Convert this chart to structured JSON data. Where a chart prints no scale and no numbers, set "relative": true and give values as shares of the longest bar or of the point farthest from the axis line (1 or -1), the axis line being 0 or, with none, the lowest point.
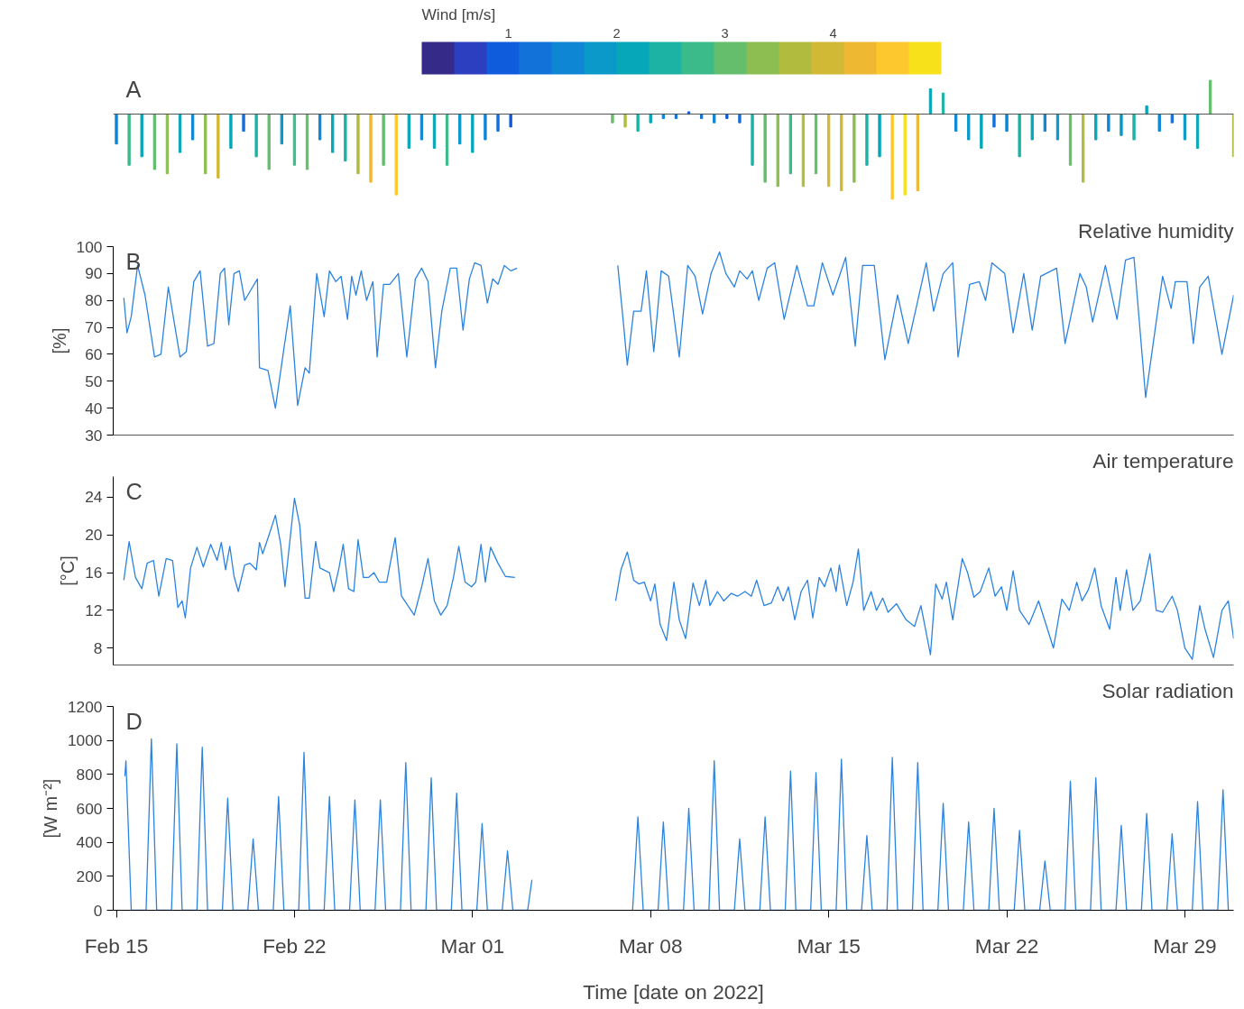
{
  "chart_data": [
    {
      "type": "bar",
      "relative": true,
      "annotations": [
        "A"
      ],
      "clabel": "Wind [m/s]",
      "clim": [
        0.2,
        5.0
      ],
      "cticks": [
        1,
        2,
        3,
        4
      ],
      "xlim": [
        "2022-02-14T21:00",
        "2022-03-30T22:00"
      ],
      "tick_labels": false,
      "x": [
        "2022-02-15T00:00",
        "2022-02-15T12:00",
        "2022-02-16T00:00",
        "2022-02-16T12:00",
        "2022-02-17T00:00",
        "2022-02-17T12:00",
        "2022-02-18T00:00",
        "2022-02-18T12:00",
        "2022-02-19T00:00",
        "2022-02-19T12:00",
        "2022-02-20T00:00",
        "2022-02-20T12:00",
        "2022-02-21T00:00",
        "2022-02-21T12:00",
        "2022-02-22T00:00",
        "2022-02-22T12:00",
        "2022-02-23T00:00",
        "2022-02-23T12:00",
        "2022-02-24T00:00",
        "2022-02-24T12:00",
        "2022-02-25T00:00",
        "2022-02-25T12:00",
        "2022-02-26T00:00",
        "2022-02-26T12:00",
        "2022-02-27T00:00",
        "2022-02-27T12:00",
        "2022-02-28T00:00",
        "2022-02-28T12:00",
        "2022-03-01T00:00",
        "2022-03-01T12:00",
        "2022-03-02T00:00",
        "2022-03-02T12:00",
        "2022-03-06T12:00",
        "2022-03-07T00:00",
        "2022-03-07T12:00",
        "2022-03-08T00:00",
        "2022-03-08T12:00",
        "2022-03-09T00:00",
        "2022-03-09T12:00",
        "2022-03-10T00:00",
        "2022-03-10T12:00",
        "2022-03-11T00:00",
        "2022-03-11T12:00",
        "2022-03-12T00:00",
        "2022-03-12T12:00",
        "2022-03-13T00:00",
        "2022-03-13T12:00",
        "2022-03-14T00:00",
        "2022-03-14T12:00",
        "2022-03-15T00:00",
        "2022-03-15T12:00",
        "2022-03-16T00:00",
        "2022-03-16T12:00",
        "2022-03-17T00:00",
        "2022-03-17T12:00",
        "2022-03-18T00:00",
        "2022-03-18T12:00",
        "2022-03-19T00:00",
        "2022-03-19T12:00",
        "2022-03-20T00:00",
        "2022-03-20T12:00",
        "2022-03-21T00:00",
        "2022-03-21T12:00",
        "2022-03-22T00:00",
        "2022-03-22T12:00",
        "2022-03-23T00:00",
        "2022-03-23T12:00",
        "2022-03-24T00:00",
        "2022-03-24T12:00",
        "2022-03-25T00:00",
        "2022-03-25T12:00",
        "2022-03-26T00:00",
        "2022-03-26T12:00",
        "2022-03-27T00:00",
        "2022-03-27T12:00",
        "2022-03-28T00:00",
        "2022-03-28T12:00",
        "2022-03-29T00:00",
        "2022-03-29T12:00",
        "2022-03-30T00:00",
        "2022-03-30T22:00"
      ],
      "values": [
        -0.35,
        -0.6,
        -0.5,
        -0.65,
        -0.7,
        -0.45,
        -0.3,
        -0.7,
        -0.75,
        -0.4,
        -0.2,
        -0.5,
        -0.65,
        -0.35,
        -0.6,
        -0.65,
        -0.3,
        -0.45,
        -0.55,
        -0.7,
        -0.8,
        -0.6,
        -0.95,
        -0.4,
        -0.3,
        -0.4,
        -0.6,
        -0.35,
        -0.45,
        -0.3,
        -0.2,
        -0.15,
        -0.1,
        -0.15,
        -0.2,
        -0.1,
        -0.05,
        -0.05,
        0.03,
        -0.05,
        -0.1,
        -0.05,
        -0.1,
        -0.6,
        -0.8,
        -0.85,
        -0.7,
        -0.85,
        -0.7,
        -0.85,
        -0.9,
        -0.8,
        -0.6,
        -0.5,
        -1.0,
        -0.95,
        -0.9,
        0.3,
        0.25,
        -0.2,
        -0.3,
        -0.4,
        -0.15,
        -0.2,
        -0.5,
        -0.3,
        -0.2,
        -0.3,
        -0.6,
        -0.8,
        -0.3,
        -0.2,
        -0.25,
        -0.3,
        0.1,
        -0.2,
        -0.1,
        -0.3,
        -0.4,
        0.4,
        -0.5
      ],
      "cvalues": [
        1.5,
        2.8,
        2.2,
        3.0,
        3.4,
        2.0,
        1.5,
        3.2,
        3.8,
        2.0,
        1.2,
        2.5,
        3.0,
        1.8,
        2.8,
        3.0,
        1.5,
        2.2,
        2.5,
        3.5,
        4.2,
        3.0,
        4.6,
        2.0,
        1.5,
        2.0,
        2.8,
        1.8,
        2.2,
        1.5,
        1.2,
        1.0,
        3.0,
        3.5,
        2.5,
        2.0,
        1.5,
        1.2,
        1.0,
        1.2,
        1.5,
        1.0,
        1.2,
        2.5,
        3.0,
        3.2,
        2.8,
        3.5,
        3.0,
        4.0,
        3.8,
        3.2,
        2.5,
        2.0,
        4.5,
        4.9,
        4.2,
        2.0,
        2.5,
        1.5,
        1.8,
        2.0,
        1.2,
        1.5,
        2.5,
        2.0,
        1.5,
        1.8,
        3.0,
        3.5,
        2.0,
        1.5,
        1.8,
        2.5,
        2.0,
        1.5,
        1.2,
        1.8,
        2.0,
        3.0,
        3.5
      ]
    },
    {
      "type": "line",
      "title": "Relative humidity",
      "ylabel": "[%]",
      "annotations": [
        "B"
      ],
      "ylim": [
        30,
        100
      ],
      "yticks": [
        30,
        40,
        50,
        60,
        70,
        80,
        90,
        100
      ],
      "xlim": [
        "2022-02-14T21:00",
        "2022-03-30T22:00"
      ],
      "tick_labels": "y",
      "grid": false,
      "series": [
        {
          "color": "#2b83e0",
          "x": [
            "2022-02-15T07:00",
            "2022-02-15T10:00",
            "2022-02-15T14:00",
            "2022-02-15T20:00",
            "2022-02-16T03:00",
            "2022-02-16T12:00",
            "2022-02-16T18:00",
            "2022-02-17T01:00",
            "2022-02-17T12:00",
            "2022-02-17T18:00",
            "2022-02-18T01:00",
            "2022-02-18T07:00",
            "2022-02-18T14:00",
            "2022-02-18T20:00",
            "2022-02-19T02:00",
            "2022-02-19T06:00",
            "2022-02-19T10:00",
            "2022-02-19T15:00",
            "2022-02-19T20:00",
            "2022-02-20T01:00",
            "2022-02-20T07:00",
            "2022-02-20T13:00",
            "2022-02-20T15:00",
            "2022-02-20T23:00",
            "2022-02-21T06:00",
            "2022-02-21T14:00",
            "2022-02-21T20:00",
            "2022-02-22T03:00",
            "2022-02-22T10:00",
            "2022-02-22T14:00",
            "2022-02-22T21:00",
            "2022-02-23T04:00",
            "2022-02-23T09:00",
            "2022-02-23T15:00",
            "2022-02-23T20:00",
            "2022-02-24T02:00",
            "2022-02-24T06:00",
            "2022-02-24T10:00",
            "2022-02-24T15:00",
            "2022-02-24T20:00",
            "2022-02-25T02:00",
            "2022-02-25T06:00",
            "2022-02-25T12:00",
            "2022-02-25T18:00",
            "2022-02-26T02:00",
            "2022-02-26T10:00",
            "2022-02-26T18:00",
            "2022-02-27T00:00",
            "2022-02-27T06:00",
            "2022-02-27T13:00",
            "2022-02-27T19:00",
            "2022-02-28T03:00",
            "2022-02-28T09:00",
            "2022-02-28T15:00",
            "2022-02-28T21:00",
            "2022-03-01T02:00",
            "2022-03-01T08:00",
            "2022-03-01T14:00",
            "2022-03-01T19:00",
            "2022-03-02T00:00",
            "2022-03-02T06:00",
            "2022-03-02T12:00",
            "2022-03-02T18:00",
            "2022-03-05T00:00",
            "2022-03-06T17:00",
            "2022-03-06T22:00",
            "2022-03-07T02:00",
            "2022-03-07T08:00",
            "2022-03-07T15:00",
            "2022-03-07T20:00",
            "2022-03-08T03:00",
            "2022-03-08T10:00",
            "2022-03-08T17:00",
            "2022-03-09T03:00",
            "2022-03-09T11:00",
            "2022-03-09T18:00",
            "2022-03-10T01:00",
            "2022-03-10T09:00",
            "2022-03-10T17:00",
            "2022-03-10T23:00",
            "2022-03-11T07:00",
            "2022-03-11T12:00",
            "2022-03-11T19:00",
            "2022-03-12T00:00",
            "2022-03-12T06:00",
            "2022-03-12T14:00",
            "2022-03-12T21:00",
            "2022-03-13T06:00",
            "2022-03-13T18:00",
            "2022-03-14T04:00",
            "2022-03-14T10:00",
            "2022-03-14T18:00",
            "2022-03-15T04:00",
            "2022-03-15T16:00",
            "2022-03-16T01:00",
            "2022-03-16T08:00",
            "2022-03-16T19:00",
            "2022-03-17T05:00",
            "2022-03-17T17:00",
            "2022-03-18T03:00",
            "2022-03-18T20:00",
            "2022-03-19T03:00",
            "2022-03-19T12:00",
            "2022-03-19T21:00",
            "2022-03-20T02:00",
            "2022-03-20T13:00",
            "2022-03-20T22:00",
            "2022-03-21T04:00",
            "2022-03-21T10:00",
            "2022-03-21T22:00",
            "2022-03-22T06:00",
            "2022-03-22T16:00",
            "2022-03-23T00:00",
            "2022-03-23T08:00",
            "2022-03-23T23:00",
            "2022-03-24T07:00",
            "2022-03-24T21:00",
            "2022-03-25T03:00",
            "2022-03-25T09:00",
            "2022-03-25T21:00",
            "2022-03-26T08:00",
            "2022-03-26T16:00",
            "2022-03-27T00:00",
            "2022-03-27T11:00",
            "2022-03-28T03:00",
            "2022-03-28T11:00",
            "2022-03-28T15:00",
            "2022-03-29T02:00",
            "2022-03-29T08:00",
            "2022-03-29T14:00",
            "2022-03-29T22:00",
            "2022-03-30T11:00",
            "2022-03-30T22:00"
          ],
          "values": [
            81,
            68,
            74,
            93,
            82,
            59,
            60,
            85,
            59,
            61,
            87,
            91,
            63,
            64,
            90,
            92,
            71,
            90,
            91,
            80,
            84,
            88,
            55,
            54,
            40,
            62,
            78,
            41,
            55,
            53,
            90,
            74,
            91,
            87,
            89,
            73,
            89,
            82,
            91,
            80,
            87,
            59,
            86,
            86,
            90,
            59,
            88,
            92,
            87,
            55,
            76,
            92,
            92,
            69,
            88,
            94,
            93,
            79,
            88,
            86,
            93,
            91,
            92,
            null,
            93,
            73,
            56,
            76,
            76,
            91,
            61,
            91,
            89,
            59,
            93,
            89,
            75,
            90,
            98,
            90,
            85,
            91,
            88,
            91,
            80,
            92,
            94,
            73,
            93,
            78,
            78,
            94,
            82,
            96,
            63,
            93,
            93,
            58,
            82,
            64,
            94,
            76,
            90,
            94,
            59,
            86,
            87,
            80,
            94,
            90,
            68,
            90,
            69,
            89,
            92,
            64,
            90,
            85,
            72,
            93,
            73,
            95,
            96,
            44,
            89,
            77,
            87,
            87,
            64,
            85,
            89,
            60,
            82
          ]
        }
      ]
    },
    {
      "type": "line",
      "title": "Air temperature",
      "ylabel": "[°C]",
      "annotations": [
        "C"
      ],
      "ylim": [
        6.2,
        26.2
      ],
      "yticks": [
        8,
        12,
        16,
        20,
        24
      ],
      "xlim": [
        "2022-02-14T21:00",
        "2022-03-30T22:00"
      ],
      "tick_labels": "y",
      "grid": false,
      "series": [
        {
          "color": "#2b83e0",
          "x": [
            "2022-02-15T07:00",
            "2022-02-15T12:00",
            "2022-02-15T18:00",
            "2022-02-16T00:00",
            "2022-02-16T05:00",
            "2022-02-16T11:00",
            "2022-02-16T16:00",
            "2022-02-16T23:00",
            "2022-02-17T05:00",
            "2022-02-17T10:00",
            "2022-02-17T14:00",
            "2022-02-17T17:00",
            "2022-02-17T22:00",
            "2022-02-18T04:00",
            "2022-02-18T10:00",
            "2022-02-18T17:00",
            "2022-02-18T23:00",
            "2022-02-19T03:00",
            "2022-02-19T07:00",
            "2022-02-19T11:00",
            "2022-02-19T15:00",
            "2022-02-19T19:00",
            "2022-02-20T01:00",
            "2022-02-20T06:00",
            "2022-02-20T12:00",
            "2022-02-20T15:00",
            "2022-02-20T18:00",
            "2022-02-21T00:00",
            "2022-02-21T06:00",
            "2022-02-21T11:00",
            "2022-02-21T15:00",
            "2022-02-22T00:00",
            "2022-02-22T05:00",
            "2022-02-22T10:00",
            "2022-02-22T14:00",
            "2022-02-22T20:00",
            "2022-02-23T00:00",
            "2022-02-23T09:00",
            "2022-02-23T13:00",
            "2022-02-23T18:00",
            "2022-02-23T22:00",
            "2022-02-24T03:00",
            "2022-02-24T08:00",
            "2022-02-24T12:00",
            "2022-02-24T17:00",
            "2022-02-24T22:00",
            "2022-02-25T03:00",
            "2022-02-25T08:00",
            "2022-02-25T15:00",
            "2022-02-25T23:00",
            "2022-02-26T05:00",
            "2022-02-26T11:00",
            "2022-02-26T17:00",
            "2022-02-27T00:00",
            "2022-02-27T06:00",
            "2022-02-27T12:00",
            "2022-02-27T18:00",
            "2022-02-28T00:00",
            "2022-02-28T06:00",
            "2022-02-28T11:00",
            "2022-02-28T17:00",
            "2022-02-28T23:00",
            "2022-03-01T03:00",
            "2022-03-01T08:00",
            "2022-03-01T12:00",
            "2022-03-01T17:00",
            "2022-03-02T00:00",
            "2022-03-02T07:00",
            "2022-03-02T16:00",
            "2022-03-05T00:00",
            "2022-03-06T15:00",
            "2022-03-06T20:00",
            "2022-03-07T02:00",
            "2022-03-07T08:00",
            "2022-03-07T13:00",
            "2022-03-07T18:00",
            "2022-03-08T00:00",
            "2022-03-08T04:00",
            "2022-03-08T09:00",
            "2022-03-08T15:00",
            "2022-03-08T22:00",
            "2022-03-09T03:00",
            "2022-03-09T09:00",
            "2022-03-09T16:00",
            "2022-03-09T22:00",
            "2022-03-10T04:00",
            "2022-03-10T08:00",
            "2022-03-10T15:00",
            "2022-03-10T21:00",
            "2022-03-11T04:00",
            "2022-03-11T10:00",
            "2022-03-11T17:00",
            "2022-03-11T23:00",
            "2022-03-12T04:00",
            "2022-03-12T11:00",
            "2022-03-12T18:00",
            "2022-03-13T00:00",
            "2022-03-13T05:00",
            "2022-03-13T10:00",
            "2022-03-13T16:00",
            "2022-03-13T22:00",
            "2022-03-14T04:00",
            "2022-03-14T09:00",
            "2022-03-14T15:00",
            "2022-03-14T20:00",
            "2022-03-15T02:00",
            "2022-03-15T07:00",
            "2022-03-15T10:00",
            "2022-03-15T17:00",
            "2022-03-15T23:00",
            "2022-03-16T04:00",
            "2022-03-16T09:00",
            "2022-03-16T16:00",
            "2022-03-16T21:00",
            "2022-03-17T03:00",
            "2022-03-17T08:00",
            "2022-03-17T16:00",
            "2022-03-18T01:00",
            "2022-03-18T09:00",
            "2022-03-18T15:00",
            "2022-03-19T00:00",
            "2022-03-19T05:00",
            "2022-03-19T11:00",
            "2022-03-19T15:00",
            "2022-03-19T21:00",
            "2022-03-20T06:00",
            "2022-03-20T11:00",
            "2022-03-20T17:00",
            "2022-03-20T23:00",
            "2022-03-21T07:00",
            "2022-03-21T13:00",
            "2022-03-21T19:00",
            "2022-03-22T00:00",
            "2022-03-22T06:00",
            "2022-03-22T12:00",
            "2022-03-22T21:00",
            "2022-03-23T06:00",
            "2022-03-23T13:00",
            "2022-03-23T20:00",
            "2022-03-24T04:00",
            "2022-03-24T11:00",
            "2022-03-24T18:00",
            "2022-03-24T23:00",
            "2022-03-25T05:00",
            "2022-03-25T11:00",
            "2022-03-25T17:00",
            "2022-03-26T01:00",
            "2022-03-26T07:00",
            "2022-03-26T11:00",
            "2022-03-26T17:00",
            "2022-03-26T23:00",
            "2022-03-27T06:00",
            "2022-03-27T15:00",
            "2022-03-27T21:00",
            "2022-03-28T03:00",
            "2022-03-28T12:00",
            "2022-03-28T17:00",
            "2022-03-29T00:00",
            "2022-03-29T07:00",
            "2022-03-29T14:00",
            "2022-03-29T19:00",
            "2022-03-30T03:00",
            "2022-03-30T11:00",
            "2022-03-30T17:00",
            "2022-03-30T22:00"
          ],
          "values": [
            15.2,
            19.3,
            15.5,
            14.3,
            17,
            17.3,
            13.5,
            17.5,
            17.3,
            12.3,
            13,
            11.2,
            16.5,
            18.7,
            16.6,
            19,
            17.3,
            19.2,
            16.3,
            18.8,
            15.6,
            14,
            16.8,
            17,
            16.3,
            19.2,
            18,
            20,
            22.1,
            19,
            14.5,
            23.9,
            21,
            13.3,
            13.3,
            19.3,
            16.5,
            16,
            14,
            16.5,
            19,
            14.3,
            14,
            19.5,
            15.5,
            15.5,
            16,
            15,
            15,
            19.7,
            13.5,
            12.5,
            11.5,
            14.5,
            17.5,
            13,
            11.5,
            12.5,
            15.5,
            18.8,
            15,
            14.5,
            15,
            19,
            15,
            18.7,
            17,
            15.6,
            15.5,
            null,
            13,
            16.3,
            18.2,
            15.2,
            14.8,
            15,
            13,
            14.8,
            10.5,
            8.8,
            15,
            11,
            9,
            14.9,
            12.5,
            15.2,
            12.5,
            14,
            13,
            13.8,
            13.5,
            14,
            13.5,
            15.2,
            12.5,
            12.8,
            14.5,
            13,
            14.5,
            11,
            14,
            15.2,
            11.2,
            15.5,
            14.5,
            16.5,
            14,
            16.8,
            12.5,
            15,
            18.5,
            12,
            14,
            12,
            13.3,
            11.8,
            12.7,
            11,
            10.3,
            12.5,
            7.3,
            14.8,
            13.2,
            15,
            11,
            17.5,
            16,
            13.4,
            14,
            16.5,
            13.5,
            14.5,
            12,
            16.2,
            12,
            10.5,
            13,
            10.5,
            8,
            13.2,
            12,
            15,
            13,
            14.2,
            16.5,
            12.5,
            10,
            15.5,
            12,
            16.3,
            12,
            13,
            18,
            12,
            11.8,
            13.5,
            12,
            8,
            6.8,
            12.5,
            10,
            7,
            12,
            13,
            9
          ]
        }
      ]
    },
    {
      "type": "line",
      "title": "Solar radiation",
      "ylabel": "[W m⁻²]",
      "xlabel": "Time [date on 2022]",
      "annotations": [
        "D"
      ],
      "ylim": [
        0,
        1200
      ],
      "yticks": [
        0,
        200,
        400,
        600,
        800,
        1000,
        1200
      ],
      "xlim": [
        "2022-02-14T21:00",
        "2022-03-30T22:00"
      ],
      "xticks": [
        {
          "value": "2022-02-15",
          "label": "Feb 15"
        },
        {
          "value": "2022-02-22",
          "label": "Feb 22"
        },
        {
          "value": "2022-03-01",
          "label": "Mar 01"
        },
        {
          "value": "2022-03-08",
          "label": "Mar 08"
        },
        {
          "value": "2022-03-15",
          "label": "Mar 15"
        },
        {
          "value": "2022-03-22",
          "label": "Mar 22"
        },
        {
          "value": "2022-03-29",
          "label": "Mar 29"
        }
      ],
      "grid": false,
      "series": [
        {
          "color": "#2b83e0",
          "x": [
            "2022-02-15T08:00",
            "2022-02-15T09:00",
            "2022-02-15T14:00",
            "2022-02-16T04:00",
            "2022-02-16T09:00",
            "2022-02-16T14:00",
            "2022-02-17T04:00",
            "2022-02-17T09:00",
            "2022-02-17T14:00",
            "2022-02-18T04:00",
            "2022-02-18T09:00",
            "2022-02-18T14:00",
            "2022-02-19T04:00",
            "2022-02-19T09:00",
            "2022-02-19T14:00",
            "2022-02-20T04:00",
            "2022-02-20T09:00",
            "2022-02-20T14:00",
            "2022-02-21T04:00",
            "2022-02-21T09:00",
            "2022-02-21T14:00",
            "2022-02-22T04:00",
            "2022-02-22T09:00",
            "2022-02-22T14:00",
            "2022-02-23T04:00",
            "2022-02-23T09:00",
            "2022-02-23T14:00",
            "2022-02-24T04:00",
            "2022-02-24T09:00",
            "2022-02-24T14:00",
            "2022-02-25T04:00",
            "2022-02-25T09:00",
            "2022-02-25T14:00",
            "2022-02-26T04:00",
            "2022-02-26T09:00",
            "2022-02-26T14:00",
            "2022-02-27T04:00",
            "2022-02-27T09:00",
            "2022-02-27T14:00",
            "2022-02-28T04:00",
            "2022-02-28T09:00",
            "2022-02-28T14:00",
            "2022-03-01T04:00",
            "2022-03-01T09:00",
            "2022-03-01T14:00",
            "2022-03-02T04:00",
            "2022-03-02T09:00",
            "2022-03-02T14:00",
            "2022-03-03T04:00",
            "2022-03-03T08:00",
            "2022-03-05T00:00",
            "2022-03-07T07:00",
            "2022-03-07T12:00",
            "2022-03-07T17:00",
            "2022-03-08T07:00",
            "2022-03-08T12:00",
            "2022-03-08T17:00",
            "2022-03-09T07:00",
            "2022-03-09T12:00",
            "2022-03-09T17:00",
            "2022-03-10T07:00",
            "2022-03-10T12:00",
            "2022-03-10T17:00",
            "2022-03-11T07:00",
            "2022-03-11T12:00",
            "2022-03-11T17:00",
            "2022-03-12T07:00",
            "2022-03-12T12:00",
            "2022-03-12T17:00",
            "2022-03-13T07:00",
            "2022-03-13T12:00",
            "2022-03-13T17:00",
            "2022-03-14T07:00",
            "2022-03-14T12:00",
            "2022-03-14T17:00",
            "2022-03-15T07:00",
            "2022-03-15T12:00",
            "2022-03-15T17:00",
            "2022-03-16T07:00",
            "2022-03-16T12:00",
            "2022-03-16T17:00",
            "2022-03-17T07:00",
            "2022-03-17T12:00",
            "2022-03-17T17:00",
            "2022-03-18T07:00",
            "2022-03-18T12:00",
            "2022-03-18T17:00",
            "2022-03-19T07:00",
            "2022-03-19T12:00",
            "2022-03-19T17:00",
            "2022-03-20T07:00",
            "2022-03-20T12:00",
            "2022-03-20T17:00",
            "2022-03-21T07:00",
            "2022-03-21T12:00",
            "2022-03-21T17:00",
            "2022-03-22T07:00",
            "2022-03-22T12:00",
            "2022-03-22T17:00",
            "2022-03-23T07:00",
            "2022-03-23T12:00",
            "2022-03-23T17:00",
            "2022-03-24T07:00",
            "2022-03-24T12:00",
            "2022-03-24T17:00",
            "2022-03-25T07:00",
            "2022-03-25T12:00",
            "2022-03-25T17:00",
            "2022-03-26T07:00",
            "2022-03-26T12:00",
            "2022-03-26T17:00",
            "2022-03-27T07:00",
            "2022-03-27T12:00",
            "2022-03-27T17:00",
            "2022-03-28T07:00",
            "2022-03-28T12:00",
            "2022-03-28T17:00",
            "2022-03-29T07:00",
            "2022-03-29T12:00",
            "2022-03-29T17:00",
            "2022-03-30T07:00",
            "2022-03-30T12:00",
            "2022-03-30T17:00"
          ],
          "values": [
            790,
            880,
            0,
            0,
            1010,
            0,
            0,
            980,
            0,
            0,
            960,
            0,
            0,
            660,
            0,
            0,
            420,
            0,
            0,
            670,
            0,
            0,
            930,
            0,
            0,
            670,
            0,
            0,
            650,
            0,
            0,
            650,
            0,
            0,
            870,
            0,
            0,
            780,
            0,
            0,
            690,
            0,
            0,
            510,
            0,
            0,
            350,
            0,
            0,
            180,
            null,
            0,
            550,
            0,
            0,
            520,
            0,
            0,
            600,
            0,
            0,
            880,
            0,
            0,
            420,
            0,
            0,
            550,
            0,
            0,
            820,
            0,
            0,
            810,
            0,
            0,
            890,
            0,
            0,
            440,
            0,
            0,
            900,
            0,
            0,
            870,
            0,
            0,
            630,
            0,
            0,
            520,
            0,
            0,
            600,
            0,
            0,
            470,
            0,
            0,
            290,
            0,
            0,
            760,
            0,
            0,
            780,
            0,
            0,
            500,
            0,
            0,
            570,
            0,
            0,
            450,
            0,
            0,
            640,
            0,
            0,
            710,
            0
          ]
        }
      ]
    }
  ]
}
